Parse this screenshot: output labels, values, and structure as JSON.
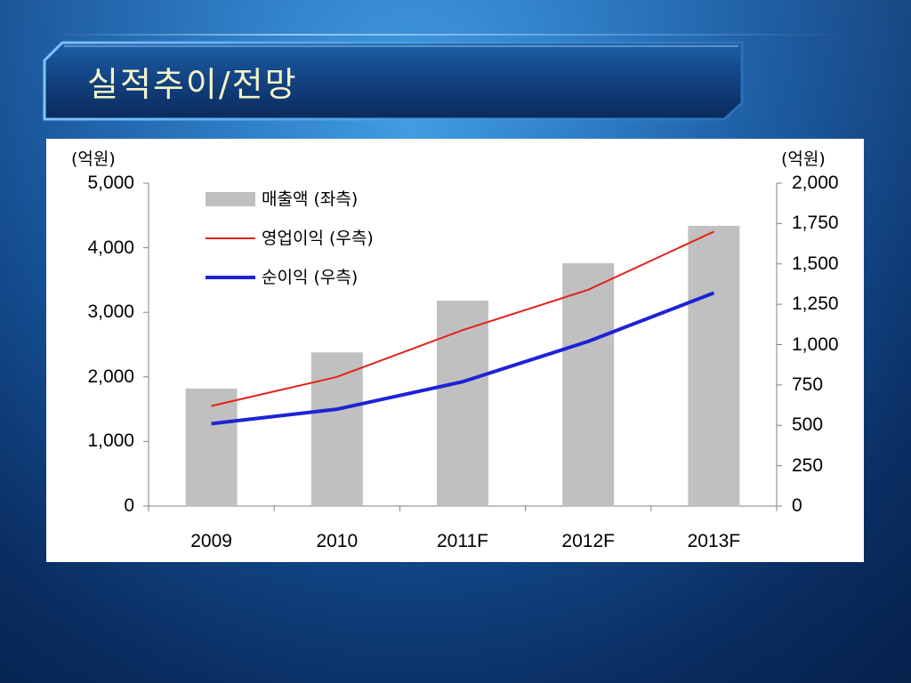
{
  "slide": {
    "title": "실적추이/전망"
  },
  "chart_data": {
    "type": "bar",
    "categories": [
      "2009",
      "2010",
      "2011F",
      "2012F",
      "2013F"
    ],
    "series": [
      {
        "name": "매출액 (좌측)",
        "type": "bar",
        "axis": "left",
        "color": "#c0c0c0",
        "values": [
          1820,
          2380,
          3180,
          3760,
          4340
        ]
      },
      {
        "name": "영업이익 (우측)",
        "type": "line",
        "axis": "right",
        "color": "#e2231a",
        "values": [
          620,
          800,
          1090,
          1340,
          1700
        ]
      },
      {
        "name": "순이익 (우측)",
        "type": "line",
        "axis": "right",
        "color": "#1e22d6",
        "values": [
          510,
          600,
          770,
          1020,
          1320
        ]
      }
    ],
    "left_axis": {
      "unit": "(억원)",
      "ylim": [
        0,
        5000
      ],
      "ticks": [
        "0",
        "1,000",
        "2,000",
        "3,000",
        "4,000",
        "5,000"
      ]
    },
    "right_axis": {
      "unit": "(억원)",
      "ylim": [
        0,
        2000
      ],
      "ticks": [
        "0",
        "250",
        "500",
        "750",
        "1,000",
        "1,250",
        "1,500",
        "1,750",
        "2,000"
      ]
    },
    "grid": false,
    "legend_position": "top-left"
  }
}
